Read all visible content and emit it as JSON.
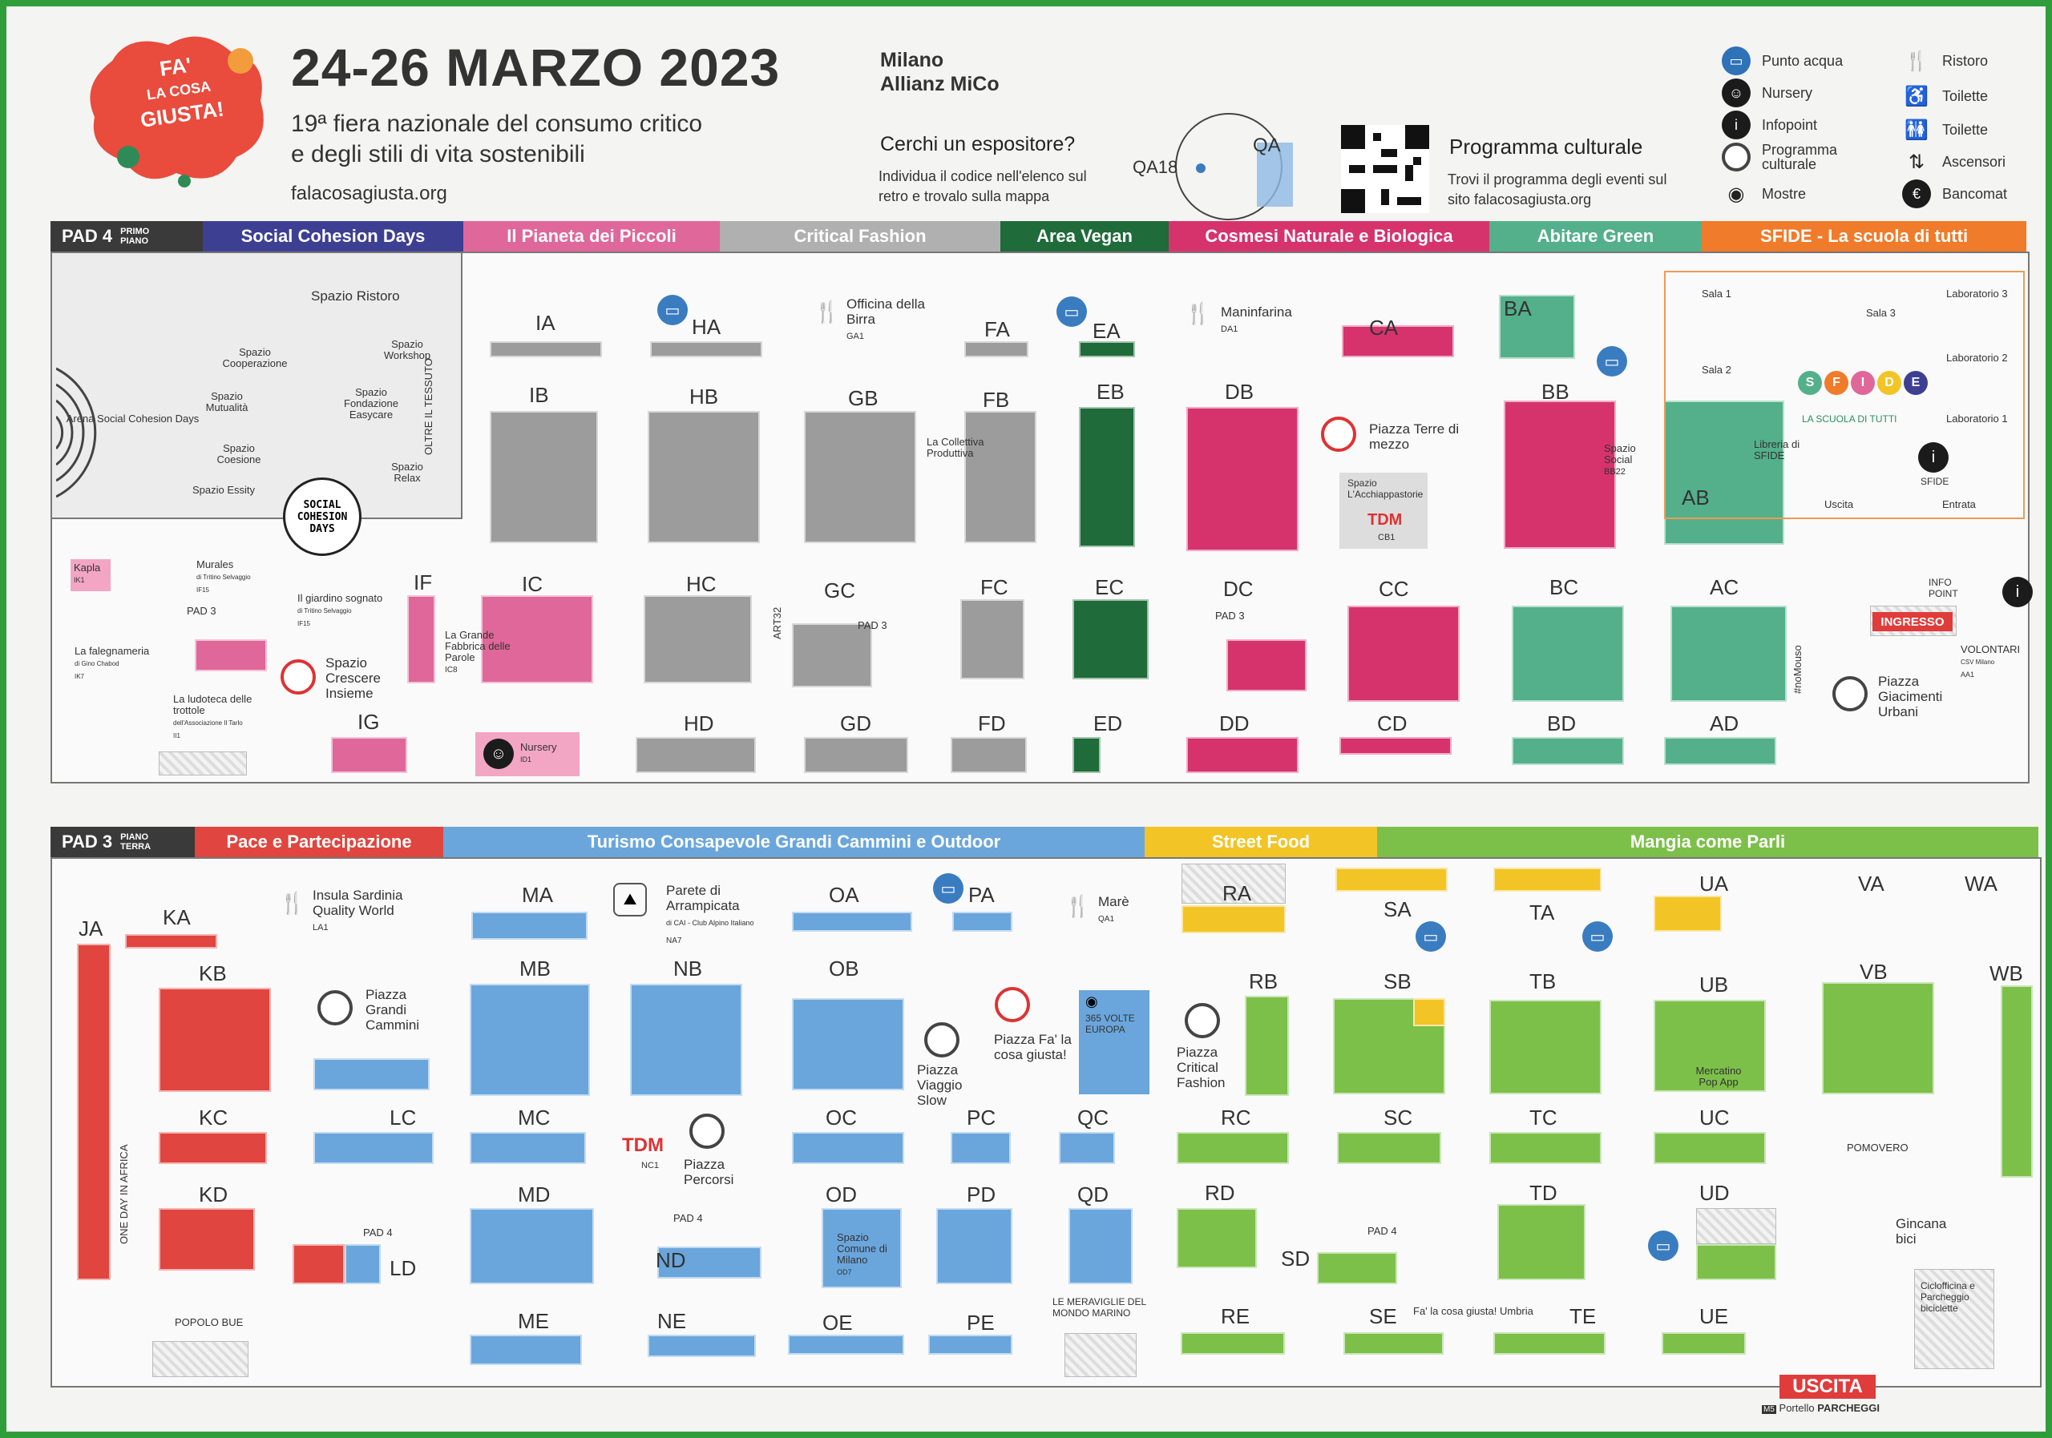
{
  "header": {
    "logo_lines": [
      "FA'",
      "LA COSA",
      "GIUSTA!"
    ],
    "dates": "24-26 MARZO 2023",
    "city": "Milano",
    "venue": "Allianz MiCo",
    "subtitle_1": "19ª fiera nazionale del consumo critico",
    "subtitle_2": "e degli stili di vita sostenibili",
    "website": "falacosagiusta.org",
    "search_title": "Cerchi un espositore?",
    "search_desc": "Individua il codice nell'elenco sul retro e trovalo sulla mappa",
    "search_example_code": "QA18",
    "search_example_area": "QA",
    "program_title": "Programma culturale",
    "program_desc": "Trovi il programma degli eventi sul sito falacosagiusta.org"
  },
  "legend": [
    {
      "icon": "water-point-icon",
      "label": "Punto acqua"
    },
    {
      "icon": "nursery-icon",
      "label": "Nursery"
    },
    {
      "icon": "info-icon",
      "label": "Infopoint"
    },
    {
      "icon": "cultural-program-icon",
      "label": "Programma culturale"
    },
    {
      "icon": "exhibition-eye-icon",
      "label": "Mostre"
    },
    {
      "icon": "restaurant-icon",
      "label": "Ristoro"
    },
    {
      "icon": "accessible-toilet-icon",
      "label": "Toilette"
    },
    {
      "icon": "toilet-icon",
      "label": "Toilette"
    },
    {
      "icon": "elevator-icon",
      "label": "Ascensori"
    },
    {
      "icon": "atm-icon",
      "label": "Bancomat"
    }
  ],
  "colors": {
    "social": "#3d3f93",
    "piccoli": "#e0679a",
    "critical": "#9c9c9c",
    "vegan": "#1f6b3a",
    "cosmesi": "#d6336c",
    "abitare": "#53b08a",
    "sfide": "#ef7b2b",
    "pace": "#e0453f",
    "turismo": "#6aa6dc",
    "street": "#f3c425",
    "mangia": "#7cc04a"
  },
  "pad4": {
    "label": "PAD 4",
    "floor": "PRIMO PIANO",
    "sections": [
      "Social Cohesion Days",
      "Il Pianeta dei Piccoli",
      "Critical Fashion",
      "Area Vegan",
      "Cosmesi Naturale e Biologica",
      "Abitare Green",
      "SFIDE - La scuola di tutti"
    ],
    "codes": [
      "IA",
      "HA",
      "FA",
      "EA",
      "CA",
      "BA",
      "IB",
      "HB",
      "GB",
      "FB",
      "EB",
      "DB",
      "BB",
      "AB",
      "IF",
      "IC",
      "HC",
      "GC",
      "FC",
      "EC",
      "DC",
      "CC",
      "BC",
      "AC",
      "IG",
      "HD",
      "GD",
      "FD",
      "ED",
      "DD",
      "CD",
      "BD",
      "AD"
    ],
    "places": {
      "spazio_ristoro": "Spazio Ristoro",
      "spazio_cooperazione": "Spazio Cooperazione",
      "spazio_workshop": "Spazio Workshop",
      "spazio_mutualita": "Spazio Mutualità",
      "spazio_fondazione": "Spazio Fondazione Easycare",
      "arena": "Arena Social Cohesion Days",
      "spazio_coesione": "Spazio Coesione",
      "spazio_essity": "Spazio Essity",
      "spazio_relax": "Spazio Relax",
      "social_cohesion_days": "SOCIAL COHESION DAYS",
      "oltre_il_tessuto": "OLTRE IL TESSUTO",
      "officina": "Officina della Birra",
      "officina_code": "GA1",
      "maninfarina": "Maninfarina",
      "maninfarina_code": "DA1",
      "collettiva": "La Collettiva Produttiva",
      "piazza_terre": "Piazza Terre di mezzo",
      "acchiappastorie": "Spazio L'Acchiappastorie",
      "tdm_code": "CB1",
      "spazio_social": "Spazio Social",
      "spazio_social_code": "BB22",
      "libreria": "Libreria di SFIDE",
      "sfide_brand": "SFIDE",
      "sfide_tagline": "LA SCUOLA DI TUTTI",
      "sfide_info": "SFIDE",
      "sala_1": "Sala 1",
      "sala_2": "Sala 2",
      "sala_3": "Sala 3",
      "lab_3": "Laboratorio 3",
      "lab_2": "Laboratorio 2",
      "lab_1": "Laboratorio 1",
      "uscita": "Uscita",
      "entrata": "Entrata",
      "kapla": "Kapla",
      "kapla_code": "IK1",
      "murales": "Murales",
      "murales_sub": "di Tritino Selvaggio",
      "murales_code": "IF15",
      "giardino": "Il giardino sognato",
      "giardino_sub": "di Tritino Selvaggio",
      "giardino_code": "IF15",
      "falegnameria": "La falegnameria",
      "falegnameria_sub": "di Gino Chabod",
      "falegnameria_code": "IK7",
      "ludoteca": "La ludoteca delle trottole",
      "ludoteca_sub": "dell'Associazione Il Tarlo",
      "ludoteca_code": "II1",
      "spazio_crescere": "Spazio Crescere Insieme",
      "grande_fabbrica": "La Grande Fabbrica delle Parole",
      "grande_fabbrica_code": "IC8",
      "nursery": "Nursery",
      "nursery_code": "ID1",
      "art32": "ART32",
      "info_point": "INFO POINT",
      "ingresso": "INGRESSO",
      "volontari": "VOLONTARI",
      "volontari_sub": "CSV Milano",
      "volontari_code": "AA1",
      "piazza_giacimenti": "Piazza Giacimenti Urbani",
      "nomouso": "#noMouso",
      "pad3_arrow": "PAD 3"
    }
  },
  "pad3": {
    "label": "PAD 3",
    "floor": "PIANO TERRA",
    "sections": [
      "Pace e Partecipazione",
      "Turismo Consapevole Grandi Cammini e Outdoor",
      "Street Food",
      "Mangia come Parli"
    ],
    "codes": [
      "JA",
      "KA",
      "MA",
      "OA",
      "PA",
      "RA",
      "SA",
      "TA",
      "UA",
      "VA",
      "WA",
      "KB",
      "MB",
      "NB",
      "OB",
      "RB",
      "SB",
      "TB",
      "UB",
      "VB",
      "WB",
      "KC",
      "LC",
      "MC",
      "OC",
      "PC",
      "QC",
      "RC",
      "SC",
      "TC",
      "UC",
      "KD",
      "LD",
      "MD",
      "ND",
      "OD",
      "PD",
      "QD",
      "RD",
      "SD",
      "TD",
      "UD",
      "ME",
      "NE",
      "OE",
      "PE",
      "RE",
      "SE",
      "TE",
      "UE"
    ],
    "places": {
      "insula": "Insula Sardinia Quality World",
      "insula_code": "LA1",
      "parete": "Parete di Arrampicata",
      "parete_sub": "di CAI - Club Alpino Italiano",
      "parete_code": "NA7",
      "mare": "Marè",
      "mare_code": "QA1",
      "piazza_grandi_cammini": "Piazza Grandi Cammini",
      "piazza_viaggio": "Piazza Viaggio Slow",
      "piazza_fa": "Piazza Fa' la cosa giusta!",
      "volte_europa": "365 VOLTE EUROPA",
      "piazza_critical": "Piazza Critical Fashion",
      "mercatino": "Mercatino Pop App",
      "tdm_code": "NC1",
      "piazza_percorsi": "Piazza Percorsi",
      "spazio_comune": "Spazio Comune di Milano",
      "spazio_comune_code": "OD7",
      "meraviglie": "LE MERAVIGLIE DEL MONDO MARINO",
      "popolo_bue": "POPOLO BUE",
      "one_day": "ONE DAY IN AFRICA",
      "pomovero": "POMOVERO",
      "gincana": "Gincana bici",
      "ciclofficina": "Ciclofficina e Parcheggio biciclette",
      "umbria": "Fa' la cosa giusta! Umbria",
      "uscita": "USCITA",
      "portello": "Portello",
      "parcheggi": "PARCHEGGI",
      "metro": "M5",
      "pad4_arrow": "PAD 4"
    }
  }
}
